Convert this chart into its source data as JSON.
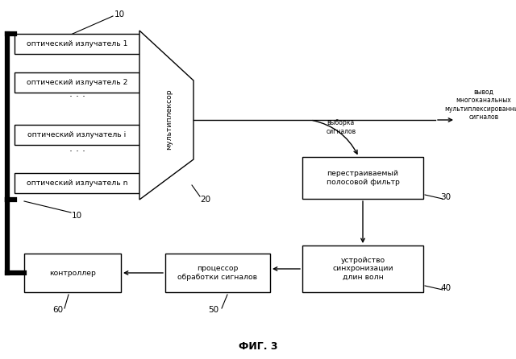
{
  "fig_width": 6.4,
  "fig_height": 4.46,
  "dpi": 100,
  "bg_color": "#ffffff",
  "title": "ФИГ. 3",
  "emitters": [
    "оптический излучатель 1",
    "оптический излучатель 2",
    "оптический излучатель i",
    "оптический излучатель n"
  ],
  "mux_label": "мультиплексор",
  "filter_label": "перестраиваемый\nполосовой фильтр",
  "sync_label": "устройство\nсинхронизации\nдлин волн",
  "processor_label": "процессор\nобработки сигналов",
  "controller_label": "контроллер",
  "output_label": "вывод\nмногоканальных\nмультиплексированных\nсигналов",
  "selection_label": "выборка\nсигналов",
  "label_10_top": "10",
  "label_10_bot": "10",
  "label_20": "20",
  "label_30": "30",
  "label_40": "40",
  "label_50": "50",
  "label_60": "60",
  "text_color": "#000000",
  "font_size": 7.0,
  "title_font_size": 9.0
}
